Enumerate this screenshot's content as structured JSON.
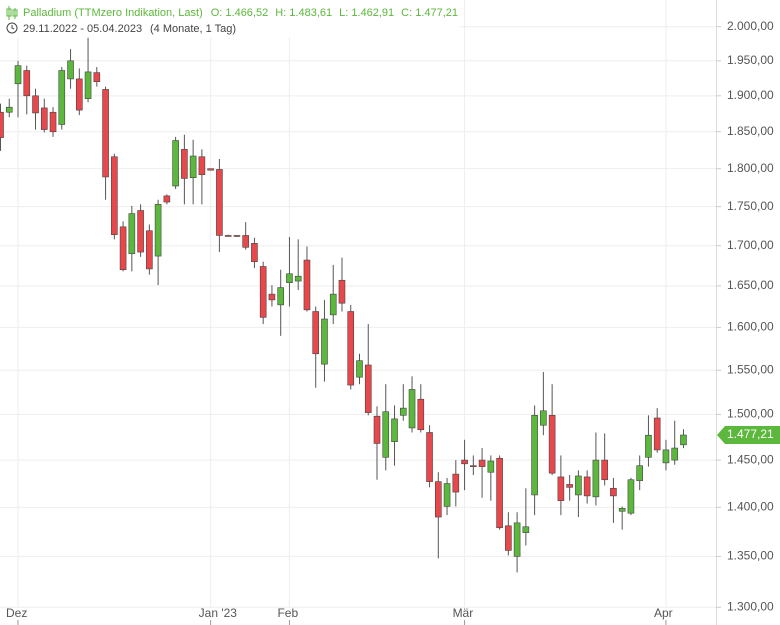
{
  "chart_data": {
    "type": "candlestick",
    "title": "Palladium (TTMzero Indikation, Last)",
    "summary": [
      "O: 1.466,52",
      "H: 1.483,61",
      "L: 1.462,91",
      "C: 1.477,21"
    ],
    "date_range": "29.11.2022 - 05.04.2023",
    "period": "(4 Monate, 1 Tag)",
    "log_scale": true,
    "grid": true,
    "up_color": "#5cb83c",
    "down_color": "#e8474b",
    "last_price": {
      "value": 1477.21,
      "label": "1.477,21"
    },
    "ylim": [
      1283,
      2040
    ],
    "yticks": [
      {
        "value": 2000,
        "label": "2.000,00"
      },
      {
        "value": 1950,
        "label": "1.950,00"
      },
      {
        "value": 1900,
        "label": "1.900,00"
      },
      {
        "value": 1850,
        "label": "1.850,00"
      },
      {
        "value": 1800,
        "label": "1.800,00"
      },
      {
        "value": 1750,
        "label": "1.750,00"
      },
      {
        "value": 1700,
        "label": "1.700,00"
      },
      {
        "value": 1650,
        "label": "1.650,00"
      },
      {
        "value": 1600,
        "label": "1.600,00"
      },
      {
        "value": 1550,
        "label": "1.550,00"
      },
      {
        "value": 1500,
        "label": "1.500,00"
      },
      {
        "value": 1450,
        "label": "1.450,00"
      },
      {
        "value": 1400,
        "label": "1.400,00"
      },
      {
        "value": 1350,
        "label": "1.350,00"
      },
      {
        "value": 1300,
        "label": "1.300,00"
      }
    ],
    "categories": [
      null,
      null,
      "Dez",
      null,
      null,
      null,
      null,
      null,
      null,
      null,
      null,
      null,
      null,
      null,
      null,
      null,
      null,
      null,
      null,
      null,
      null,
      null,
      null,
      null,
      "Jan '23",
      null,
      null,
      null,
      null,
      null,
      null,
      null,
      null,
      "Feb",
      null,
      null,
      null,
      null,
      null,
      null,
      null,
      null,
      null,
      null,
      null,
      null,
      null,
      null,
      null,
      null,
      null,
      null,
      null,
      "Mär",
      null,
      null,
      null,
      null,
      null,
      null,
      null,
      null,
      null,
      null,
      null,
      null,
      null,
      null,
      null,
      null,
      null,
      null,
      null,
      null,
      null,
      null,
      "Apr",
      null,
      null
    ],
    "open": [
      1877,
      1877,
      1917,
      1936,
      1900,
      1883,
      1877,
      1860,
      1924,
      1924,
      1896,
      1933,
      1909,
      1816,
      1724,
      1690,
      1745,
      1719,
      1687,
      1764,
      1777,
      1826,
      1788,
      1816,
      1800,
      1799,
      1713,
      1713,
      1713,
      1703,
      1674,
      1640,
      1627,
      1654,
      1656,
      1682,
      1619,
      1557,
      1615,
      1657,
      1619,
      1542,
      1556,
      1498,
      1453,
      1470,
      1499,
      1485,
      1517,
      1480,
      1427,
      1401,
      1435,
      1450,
      1444,
      1450,
      1437,
      1452,
      1381,
      1350,
      1374,
      1413,
      1488,
      1499,
      1432,
      1424,
      1413,
      1432,
      1411,
      1450,
      1420,
      1396,
      1394,
      1428,
      1453,
      1496,
      1447,
      1450,
      1466.52
    ],
    "high": [
      1889,
      1896,
      1950,
      1943,
      1910,
      1896,
      1884,
      1941,
      1967,
      1939,
      1986,
      1941,
      1913,
      1820,
      1731,
      1751,
      1753,
      1727,
      1759,
      1766,
      1843,
      1846,
      1839,
      1826,
      1800,
      1813,
      1714,
      1713,
      1730,
      1710,
      1680,
      1651,
      1670,
      1711,
      1708,
      1699,
      1625,
      1633,
      1676,
      1685,
      1627,
      1569,
      1604,
      1509,
      1534,
      1510,
      1534,
      1543,
      1534,
      1488,
      1437,
      1431,
      1450,
      1472,
      1455,
      1463,
      1455,
      1455,
      1395,
      1395,
      1420,
      1510,
      1548,
      1534,
      1455,
      1434,
      1439,
      1439,
      1480,
      1479,
      1431,
      1401,
      1431,
      1455,
      1499,
      1507,
      1472,
      1493,
      1483.61
    ],
    "low": [
      1824,
      1870,
      1870,
      1874,
      1853,
      1849,
      1843,
      1853,
      1910,
      1873,
      1891,
      1913,
      1759,
      1708,
      1668,
      1668,
      1686,
      1664,
      1651,
      1753,
      1773,
      1753,
      1753,
      1753,
      1798,
      1692,
      1712,
      1711,
      1695,
      1672,
      1604,
      1625,
      1590,
      1625,
      1645,
      1619,
      1530,
      1537,
      1604,
      1619,
      1528,
      1534,
      1499,
      1429,
      1439,
      1444,
      1493,
      1480,
      1480,
      1421,
      1348,
      1392,
      1401,
      1418,
      1434,
      1410,
      1407,
      1377,
      1351,
      1334,
      1361,
      1392,
      1477,
      1434,
      1392,
      1407,
      1390,
      1404,
      1402,
      1423,
      1384,
      1377,
      1392,
      1418,
      1443,
      1458,
      1439,
      1445,
      1462.91
    ],
    "close": [
      1842,
      1884,
      1943,
      1900,
      1876,
      1853,
      1850,
      1936,
      1950,
      1880,
      1934,
      1920,
      1789,
      1714,
      1670,
      1741,
      1692,
      1671,
      1753,
      1756,
      1838,
      1787,
      1817,
      1792,
      1798,
      1713,
      1712,
      1712,
      1698,
      1680,
      1612,
      1633,
      1648,
      1665,
      1662,
      1621,
      1569,
      1610,
      1640,
      1629,
      1533,
      1561,
      1502,
      1468,
      1503,
      1495,
      1507,
      1528,
      1483,
      1427,
      1390,
      1425,
      1416,
      1446,
      1443,
      1443,
      1449,
      1379,
      1356,
      1384,
      1380,
      1499,
      1504,
      1436,
      1407,
      1421,
      1433,
      1412,
      1450,
      1429,
      1412,
      1399,
      1429,
      1444,
      1477,
      1461,
      1461,
      1463,
      1477.21
    ]
  }
}
